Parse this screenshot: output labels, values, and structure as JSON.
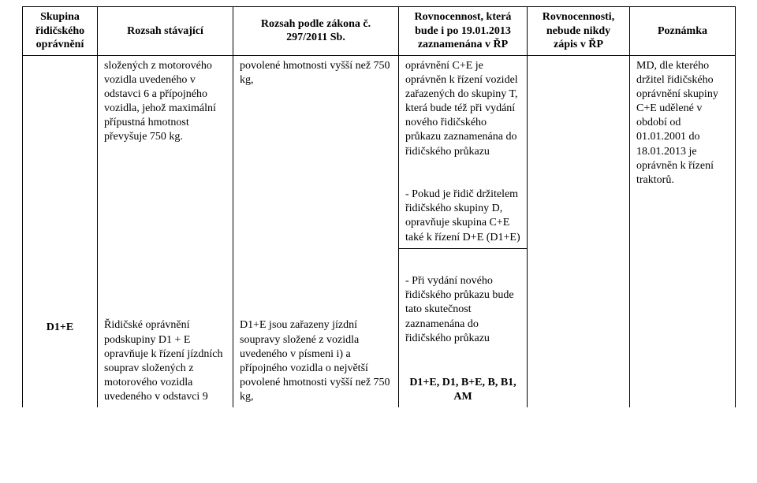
{
  "header": {
    "col1": "Skupina řidičského oprávnění",
    "col2": "Rozsah stávající",
    "col3": "Rozsah podle zákona č. 297/2011 Sb.",
    "col4": "Rovnocennost, která bude i po 19.01.2013 zaznamenána v ŘP",
    "col5": "Rovnocennosti, nebude nikdy zápis v ŘP",
    "col6": "Poznámka"
  },
  "row1": {
    "c1": "",
    "c2": "složených z motorového vozidla uvedeného v odstavci 6 a přípojného vozidla, jehož maximální přípustná hmotnost převyšuje 750 kg.",
    "c3": "povolené hmotnosti vyšší než 750 kg,",
    "c4": "oprávnění C+E je oprávněn k řízení vozidel zařazených do skupiny T, která bude též při vydání nového řidičského průkazu zaznamenána do řidičského průkazu",
    "c5": "",
    "c6": "MD, dle kterého držitel řidičského oprávnění skupiny C+E udělené v období od 01.01.2001 do 18.01.2013 je oprávněn k řízení traktorů."
  },
  "row2": {
    "c4": "- Pokud je řidič držitelem řidičského skupiny D, opravňuje skupina C+E také k řízení D+E (D1+E)"
  },
  "row3": {
    "c1": "D1+E",
    "c2": "Řidičské oprávnění podskupiny D1 + E opravňuje k řízení jízdních souprav složených z motorového vozidla uvedeného v odstavci 9",
    "c3": "D1+E jsou zařazeny jízdní soupravy složené z vozidla uvedeného v písmeni i) a přípojného vozidla o největší povolené hmotnosti vyšší než 750 kg,",
    "c4_p1": "- Při vydání nového řidičského průkazu bude tato skutečnost zaznamenána do řidičského průkazu",
    "c4_p2": "D1+E, D1, B+E, B, B1, AM",
    "c5": "",
    "c6": ""
  }
}
